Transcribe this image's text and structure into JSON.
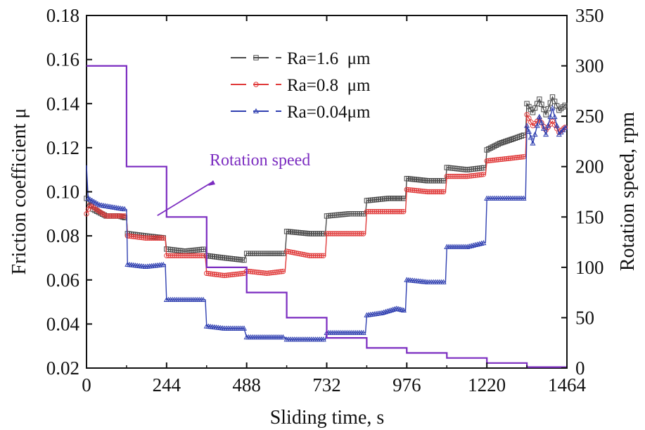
{
  "chart_data": {
    "type": "line",
    "xlabel": "Sliding time, s",
    "ylabel_left": "Friction coefficient  μ",
    "ylabel_right": "Rotation speed, rpm",
    "xlim": [
      0,
      1464
    ],
    "ylim_left": [
      0.02,
      0.18
    ],
    "ylim_right": [
      0,
      350
    ],
    "x_ticks": [
      "0",
      "244",
      "488",
      "732",
      "976",
      "1220",
      "1464"
    ],
    "y_left_ticks": [
      "0.02",
      "0.04",
      "0.06",
      "0.08",
      "0.10",
      "0.12",
      "0.14",
      "0.16",
      "0.18"
    ],
    "y_right_ticks": [
      "0",
      "50",
      "100",
      "150",
      "200",
      "250",
      "300",
      "350"
    ],
    "legend_position": "top-center",
    "grid": false,
    "series": [
      {
        "name": "Ra=1.6  μm",
        "color": "#4a4a4a",
        "marker": "square",
        "axis": "left",
        "points": [
          [
            0,
            0.097
          ],
          [
            20,
            0.092
          ],
          [
            60,
            0.089
          ],
          [
            100,
            0.089
          ],
          [
            122,
            0.088
          ],
          [
            125,
            0.081
          ],
          [
            180,
            0.08
          ],
          [
            240,
            0.079
          ],
          [
            244,
            0.074
          ],
          [
            300,
            0.073
          ],
          [
            362,
            0.074
          ],
          [
            366,
            0.071
          ],
          [
            420,
            0.07
          ],
          [
            480,
            0.069
          ],
          [
            488,
            0.072
          ],
          [
            550,
            0.072
          ],
          [
            605,
            0.072
          ],
          [
            610,
            0.082
          ],
          [
            680,
            0.081
          ],
          [
            728,
            0.081
          ],
          [
            732,
            0.089
          ],
          [
            800,
            0.09
          ],
          [
            850,
            0.09
          ],
          [
            854,
            0.096
          ],
          [
            920,
            0.097
          ],
          [
            972,
            0.097
          ],
          [
            976,
            0.106
          ],
          [
            1040,
            0.105
          ],
          [
            1094,
            0.105
          ],
          [
            1098,
            0.111
          ],
          [
            1160,
            0.11
          ],
          [
            1216,
            0.111
          ],
          [
            1220,
            0.119
          ],
          [
            1260,
            0.122
          ],
          [
            1300,
            0.124
          ],
          [
            1338,
            0.126
          ],
          [
            1342,
            0.14
          ],
          [
            1360,
            0.136
          ],
          [
            1380,
            0.142
          ],
          [
            1400,
            0.135
          ],
          [
            1420,
            0.143
          ],
          [
            1440,
            0.137
          ],
          [
            1464,
            0.14
          ]
        ]
      },
      {
        "name": "Ra=0.8  μm",
        "color": "#e03a3a",
        "marker": "circle",
        "axis": "left",
        "points": [
          [
            0,
            0.09
          ],
          [
            10,
            0.094
          ],
          [
            60,
            0.089
          ],
          [
            100,
            0.089
          ],
          [
            122,
            0.089
          ],
          [
            125,
            0.08
          ],
          [
            180,
            0.079
          ],
          [
            240,
            0.079
          ],
          [
            244,
            0.071
          ],
          [
            300,
            0.071
          ],
          [
            362,
            0.071
          ],
          [
            366,
            0.063
          ],
          [
            420,
            0.062
          ],
          [
            480,
            0.063
          ],
          [
            488,
            0.064
          ],
          [
            550,
            0.063
          ],
          [
            605,
            0.064
          ],
          [
            610,
            0.073
          ],
          [
            680,
            0.071
          ],
          [
            728,
            0.071
          ],
          [
            732,
            0.081
          ],
          [
            800,
            0.081
          ],
          [
            850,
            0.081
          ],
          [
            854,
            0.091
          ],
          [
            920,
            0.091
          ],
          [
            972,
            0.091
          ],
          [
            976,
            0.101
          ],
          [
            1040,
            0.1
          ],
          [
            1094,
            0.1
          ],
          [
            1098,
            0.107
          ],
          [
            1160,
            0.107
          ],
          [
            1216,
            0.108
          ],
          [
            1220,
            0.114
          ],
          [
            1280,
            0.115
          ],
          [
            1338,
            0.116
          ],
          [
            1342,
            0.135
          ],
          [
            1360,
            0.13
          ],
          [
            1380,
            0.133
          ],
          [
            1400,
            0.128
          ],
          [
            1420,
            0.132
          ],
          [
            1440,
            0.127
          ],
          [
            1464,
            0.13
          ]
        ]
      },
      {
        "name": "Ra=0.04μm",
        "color": "#2f3fb0",
        "marker": "triangle",
        "axis": "left",
        "points": [
          [
            0,
            0.112
          ],
          [
            5,
            0.097
          ],
          [
            40,
            0.094
          ],
          [
            80,
            0.093
          ],
          [
            122,
            0.092
          ],
          [
            125,
            0.067
          ],
          [
            180,
            0.066
          ],
          [
            240,
            0.067
          ],
          [
            244,
            0.051
          ],
          [
            300,
            0.051
          ],
          [
            362,
            0.051
          ],
          [
            366,
            0.039
          ],
          [
            420,
            0.038
          ],
          [
            480,
            0.038
          ],
          [
            488,
            0.034
          ],
          [
            550,
            0.034
          ],
          [
            605,
            0.034
          ],
          [
            610,
            0.033
          ],
          [
            680,
            0.033
          ],
          [
            728,
            0.033
          ],
          [
            732,
            0.036
          ],
          [
            800,
            0.036
          ],
          [
            850,
            0.036
          ],
          [
            854,
            0.044
          ],
          [
            900,
            0.045
          ],
          [
            945,
            0.047
          ],
          [
            972,
            0.046
          ],
          [
            976,
            0.06
          ],
          [
            1040,
            0.059
          ],
          [
            1094,
            0.059
          ],
          [
            1098,
            0.075
          ],
          [
            1160,
            0.075
          ],
          [
            1216,
            0.077
          ],
          [
            1220,
            0.097
          ],
          [
            1280,
            0.097
          ],
          [
            1338,
            0.097
          ],
          [
            1342,
            0.13
          ],
          [
            1360,
            0.122
          ],
          [
            1380,
            0.134
          ],
          [
            1400,
            0.126
          ],
          [
            1420,
            0.138
          ],
          [
            1440,
            0.126
          ],
          [
            1464,
            0.13
          ]
        ]
      },
      {
        "name": "Rotation speed",
        "color": "#7b2cc0",
        "marker": "none",
        "axis": "right",
        "points": [
          [
            0,
            300
          ],
          [
            122,
            300
          ],
          [
            122,
            200
          ],
          [
            244,
            200
          ],
          [
            244,
            150
          ],
          [
            366,
            150
          ],
          [
            366,
            100
          ],
          [
            488,
            100
          ],
          [
            488,
            75
          ],
          [
            610,
            75
          ],
          [
            610,
            50
          ],
          [
            732,
            50
          ],
          [
            732,
            30
          ],
          [
            854,
            30
          ],
          [
            854,
            20
          ],
          [
            976,
            20
          ],
          [
            976,
            15
          ],
          [
            1098,
            15
          ],
          [
            1098,
            10
          ],
          [
            1220,
            10
          ],
          [
            1220,
            5
          ],
          [
            1342,
            5
          ],
          [
            1342,
            1
          ],
          [
            1464,
            1
          ]
        ]
      }
    ],
    "annotations": [
      {
        "text": "Rotation speed",
        "color": "#7b2cc0",
        "target_x": 366,
        "target_y_right": 150
      }
    ]
  }
}
